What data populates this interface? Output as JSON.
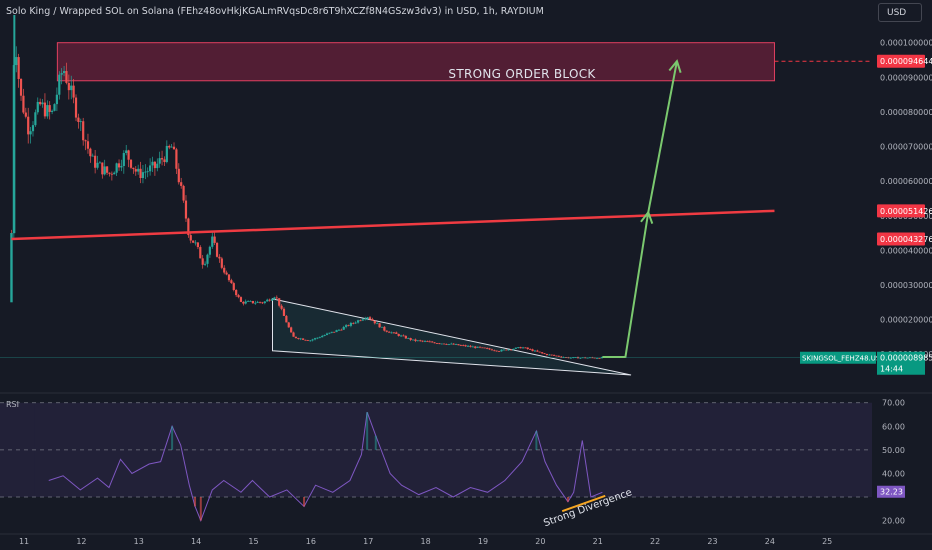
{
  "header": {
    "title": "Solo King / Wrapped SOL on Solana (FEhz48ovHkjKGALmRVqsDc8r6T9hXCZf8N4GSzw3dv3) in USD, 1h, RAYDIUM",
    "currency_button": "USD"
  },
  "colors": {
    "background": "#161a25",
    "up": "#26a69a",
    "down": "#ef5350",
    "order_block": "#9c2448",
    "trendline": "#ef3b42",
    "arrow": "#7bc96f",
    "rsi_line": "#7e57c2",
    "divergence": "#f5a623"
  },
  "price_axis": {
    "ticks": [
      "0.000100000",
      "0.000090000",
      "0.000080000",
      "0.000070000",
      "0.000060000",
      "0.000050000",
      "0.000040000",
      "0.000030000",
      "0.000020000",
      "0.000010000"
    ]
  },
  "price_labels": [
    {
      "name": "target-price-label",
      "text": "0.000094644",
      "color": "#f23645"
    },
    {
      "name": "trendline-price-label",
      "text": "0.000051426",
      "color": "#f23645"
    },
    {
      "name": "support-price-label",
      "text": "0.000043276",
      "color": "#f23645"
    }
  ],
  "symbol_tag": {
    "text": "SKINGSOL_FEHZ48.USD",
    "price": "0.000008985",
    "timer": "14:44"
  },
  "annotations": {
    "order_block": "STRONG ORDER BLOCK",
    "divergence": "Strong Divergence"
  },
  "rsi": {
    "label": "RSI",
    "ticks": [
      "70.00",
      "60.00",
      "50.00",
      "40.00",
      "20.00"
    ],
    "current": "32.23"
  },
  "time_axis": {
    "ticks": [
      "11",
      "12",
      "13",
      "14",
      "15",
      "16",
      "17",
      "18",
      "19",
      "20",
      "21",
      "22",
      "23",
      "24",
      "25"
    ]
  },
  "chart_data": {
    "type": "candlestick",
    "title": "Solo King / Wrapped SOL on Solana (FEhz48ovHkjKGALmRVqsDc8r6T9hXCZf8N4GSzw3dv3) in USD, 1h, RAYDIUM",
    "x_unit": "day",
    "y_range": [
      4e-06,
      0.000108
    ],
    "x_range": [
      10.6,
      25.8
    ],
    "price_path": [
      [
        10.8,
        4.5e-05
      ],
      [
        10.85,
        0.000105
      ],
      [
        10.95,
        8.5e-05
      ],
      [
        11.1,
        7.5e-05
      ],
      [
        11.3,
        8.2e-05
      ],
      [
        11.5,
        7.9e-05
      ],
      [
        11.7,
        9.3e-05
      ],
      [
        11.9,
        8.2e-05
      ],
      [
        12.2,
        6.6e-05
      ],
      [
        12.5,
        6.2e-05
      ],
      [
        12.8,
        6.8e-05
      ],
      [
        13.0,
        6.2e-05
      ],
      [
        13.3,
        6.4e-05
      ],
      [
        13.6,
        7e-05
      ],
      [
        13.75,
        5.8e-05
      ],
      [
        13.9,
        4.4e-05
      ],
      [
        14.0,
        4.2e-05
      ],
      [
        14.15,
        3.6e-05
      ],
      [
        14.3,
        4.3e-05
      ],
      [
        14.45,
        3.6e-05
      ],
      [
        14.6,
        3.1e-05
      ],
      [
        14.8,
        2.5e-05
      ],
      [
        15.2,
        2.5e-05
      ],
      [
        15.4,
        2.7e-05
      ],
      [
        15.7,
        1.5e-05
      ],
      [
        16.0,
        1.4e-05
      ],
      [
        16.5,
        1.7e-05
      ],
      [
        17.0,
        2.1e-05
      ],
      [
        17.3,
        1.7e-05
      ],
      [
        17.8,
        1.4e-05
      ],
      [
        18.4,
        1.3e-05
      ],
      [
        18.9,
        1.2e-05
      ],
      [
        19.3,
        1.1e-05
      ],
      [
        19.7,
        1.2e-05
      ],
      [
        20.1,
        1e-05
      ],
      [
        20.5,
        9e-06
      ],
      [
        20.9,
        9e-06
      ],
      [
        21.1,
        9e-06
      ]
    ],
    "order_block": {
      "x": [
        11.6,
        24.1
      ],
      "y": [
        8.9e-05,
        0.0001
      ],
      "label": "STRONG ORDER BLOCK"
    },
    "trendline": {
      "x": [
        10.8,
        24.1
      ],
      "y": [
        4.3276e-05,
        5.1426e-05
      ]
    },
    "wedge": {
      "upper": [
        [
          15.35,
          2.6e-05
        ],
        [
          21.6,
          4e-06
        ]
      ],
      "lower": [
        [
          15.35,
          1.1e-05
        ],
        [
          21.6,
          4e-06
        ]
      ]
    },
    "projection_arrows": [
      {
        "from": [
          21.5,
          9e-06
        ],
        "to": [
          21.9,
          5.1e-05
        ]
      },
      {
        "from": [
          21.9,
          5.1e-05
        ],
        "to": [
          22.4,
          9.4644e-05
        ]
      }
    ],
    "current_price": 8.985e-06,
    "rsi": {
      "y_range": [
        16,
        72
      ],
      "levels": [
        70,
        50,
        30
      ],
      "x": [
        11.45,
        11.7,
        12.0,
        12.3,
        12.5,
        12.7,
        12.9,
        13.2,
        13.4,
        13.6,
        13.75,
        13.9,
        14.0,
        14.1,
        14.3,
        14.5,
        14.8,
        15.0,
        15.3,
        15.6,
        15.9,
        16.1,
        16.4,
        16.7,
        16.9,
        17.0,
        17.15,
        17.4,
        17.6,
        17.9,
        18.2,
        18.5,
        18.8,
        19.1,
        19.4,
        19.7,
        19.95,
        20.1,
        20.3,
        20.5,
        20.6,
        20.75,
        20.9,
        21.1
      ],
      "values": [
        37,
        39,
        33,
        38,
        34,
        46,
        40,
        44,
        45,
        60,
        52,
        35,
        26,
        20,
        33,
        37,
        32,
        37,
        30,
        33,
        26,
        35,
        32,
        37,
        48,
        66,
        56,
        40,
        35,
        31,
        34,
        30,
        34,
        32,
        37,
        45,
        58,
        45,
        35,
        28,
        32,
        54,
        30,
        32
      ],
      "divergence_line": {
        "from": [
          20.4,
          24
        ],
        "to": [
          21.15,
          30.5
        ]
      },
      "divergence_label": "Strong Divergence"
    }
  }
}
